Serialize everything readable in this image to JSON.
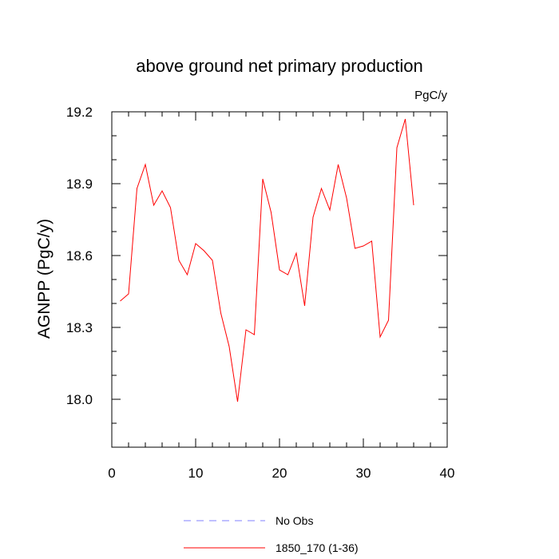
{
  "chart_data": {
    "type": "line",
    "title": "above ground net primary production",
    "units_label": "PgC/y",
    "ylabel": "AGNPP  (PgC/y)",
    "xlabel": "",
    "xlim": [
      0,
      40
    ],
    "ylim": [
      17.8,
      19.2
    ],
    "x_ticks": [
      0,
      10,
      20,
      30,
      40
    ],
    "x_tick_labels": [
      "0",
      "10",
      "20",
      "30",
      "40"
    ],
    "y_ticks": [
      18.0,
      18.3,
      18.6,
      18.9,
      19.2
    ],
    "y_tick_labels": [
      "18.0",
      "18.3",
      "18.6",
      "18.9",
      "19.2"
    ],
    "grid": false,
    "legend_position": "bottom",
    "legend": [
      {
        "label": "No Obs",
        "style": "dashed",
        "color": "#8080ff"
      },
      {
        "label": "1850_170 (1-36)",
        "style": "solid",
        "color": "#ff0000"
      }
    ],
    "series": [
      {
        "name": "1850_170 (1-36)",
        "color": "#ff0000",
        "x": [
          1,
          2,
          3,
          4,
          5,
          6,
          7,
          8,
          9,
          10,
          11,
          12,
          13,
          14,
          15,
          16,
          17,
          18,
          19,
          20,
          21,
          22,
          23,
          24,
          25,
          26,
          27,
          28,
          29,
          30,
          31,
          32,
          33,
          34,
          35,
          36
        ],
        "values": [
          18.41,
          18.44,
          18.88,
          18.98,
          18.81,
          18.87,
          18.8,
          18.58,
          18.52,
          18.65,
          18.62,
          18.58,
          18.36,
          18.22,
          17.99,
          18.29,
          18.27,
          18.92,
          18.78,
          18.54,
          18.52,
          18.61,
          18.39,
          18.76,
          18.88,
          18.79,
          18.98,
          18.84,
          18.63,
          18.64,
          18.66,
          18.26,
          18.33,
          19.05,
          19.17,
          18.81
        ]
      }
    ]
  }
}
